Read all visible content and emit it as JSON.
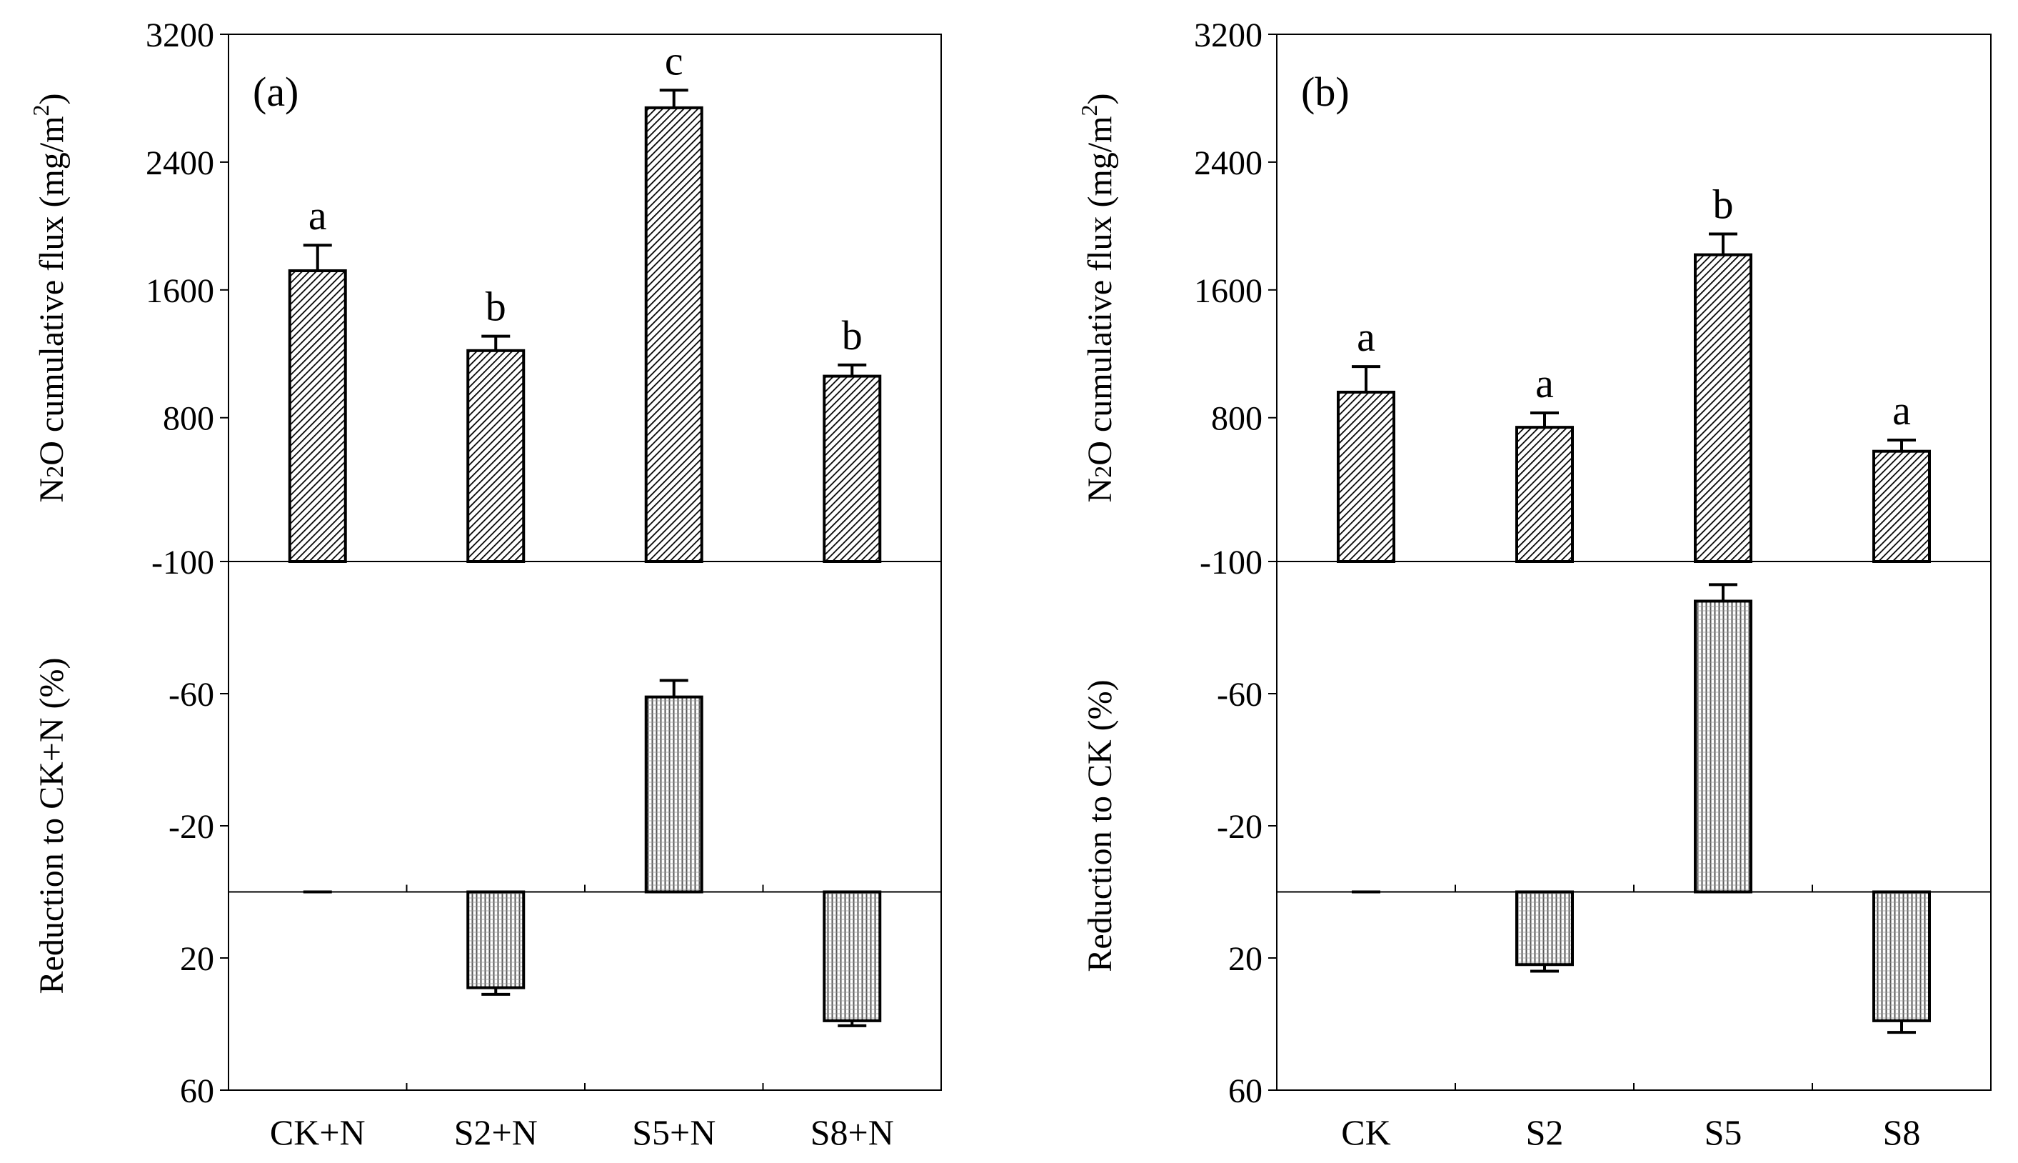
{
  "colors": {
    "ink": "#000000",
    "background": "#ffffff"
  },
  "patterns": {
    "top": "hatch-dense",
    "bottom": "hatch-vertical"
  },
  "chart_data": [
    {
      "type": "bar",
      "panel_label": "(a)",
      "categories": [
        "CK+N",
        "S2+N",
        "S5+N",
        "S8+N"
      ],
      "top": {
        "ylabel": "N2O cumulative flux (mg/m2)",
        "ylabel_parts": {
          "main": "N",
          "sub": "2",
          "rest": "O cumulative flux (mg/m",
          "sup": "2",
          "end": ")"
        },
        "ylim": [
          -100,
          3200
        ],
        "ticks": [
          3200,
          2400,
          1600,
          800,
          -100
        ],
        "tick_labels": [
          "3200",
          "2400",
          "1600",
          "800",
          "-100"
        ],
        "values": [
          1720,
          1220,
          2740,
          1060
        ],
        "errors": [
          160,
          90,
          110,
          70
        ],
        "significance": [
          "a",
          "b",
          "c",
          "b"
        ]
      },
      "bottom": {
        "ylabel": "Reduction to CK+N (%)",
        "ylim": [
          -100,
          60
        ],
        "ticks": [
          -60,
          -20,
          20,
          60
        ],
        "tick_labels": [
          "-60",
          "-20",
          "20",
          "60"
        ],
        "values": [
          0,
          29,
          -59,
          39
        ],
        "errors": [
          0,
          2,
          5,
          1.5
        ]
      }
    },
    {
      "type": "bar",
      "panel_label": "(b)",
      "categories": [
        "CK",
        "S2",
        "S5",
        "S8"
      ],
      "top": {
        "ylabel": "N2O cumulative flux (mg/m2)",
        "ylabel_parts": {
          "main": "N",
          "sub": "2",
          "rest": "O cumulative flux (mg/m",
          "sup": "2",
          "end": ")"
        },
        "ylim": [
          -100,
          3200
        ],
        "ticks": [
          3200,
          2400,
          1600,
          800,
          -100
        ],
        "tick_labels": [
          "3200",
          "2400",
          "1600",
          "800",
          "-100"
        ],
        "values": [
          960,
          740,
          1820,
          590
        ],
        "errors": [
          160,
          90,
          130,
          70
        ],
        "significance": [
          "a",
          "a",
          "b",
          "a"
        ]
      },
      "bottom": {
        "ylabel": "Reduction to CK (%)",
        "ylim": [
          -100,
          60
        ],
        "ticks": [
          -60,
          -20,
          20,
          60
        ],
        "tick_labels": [
          "-60",
          "-20",
          "20",
          "60"
        ],
        "values": [
          0,
          22,
          -88,
          39
        ],
        "errors": [
          0,
          2,
          5,
          3.5
        ]
      }
    }
  ]
}
